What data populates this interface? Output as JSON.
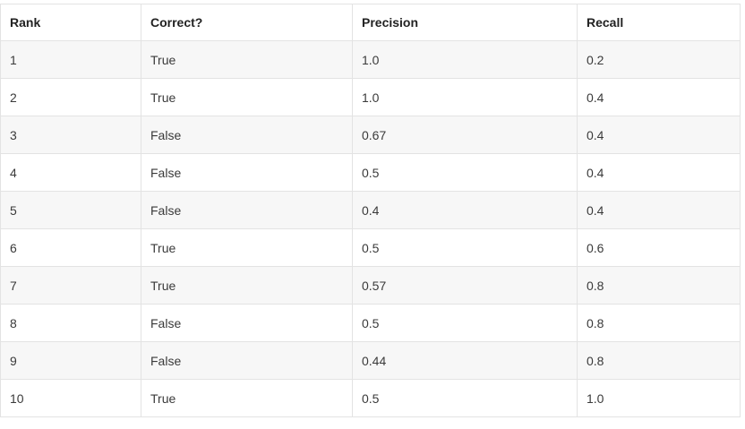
{
  "table": {
    "headers": [
      "Rank",
      "Correct?",
      "Precision",
      "Recall"
    ],
    "rows": [
      [
        "1",
        "True",
        "1.0",
        "0.2"
      ],
      [
        "2",
        "True",
        "1.0",
        "0.4"
      ],
      [
        "3",
        "False",
        "0.67",
        "0.4"
      ],
      [
        "4",
        "False",
        "0.5",
        "0.4"
      ],
      [
        "5",
        "False",
        "0.4",
        "0.4"
      ],
      [
        "6",
        "True",
        "0.5",
        "0.6"
      ],
      [
        "7",
        "True",
        "0.57",
        "0.8"
      ],
      [
        "8",
        "False",
        "0.5",
        "0.8"
      ],
      [
        "9",
        "False",
        "0.44",
        "0.8"
      ],
      [
        "10",
        "True",
        "0.5",
        "1.0"
      ]
    ]
  }
}
